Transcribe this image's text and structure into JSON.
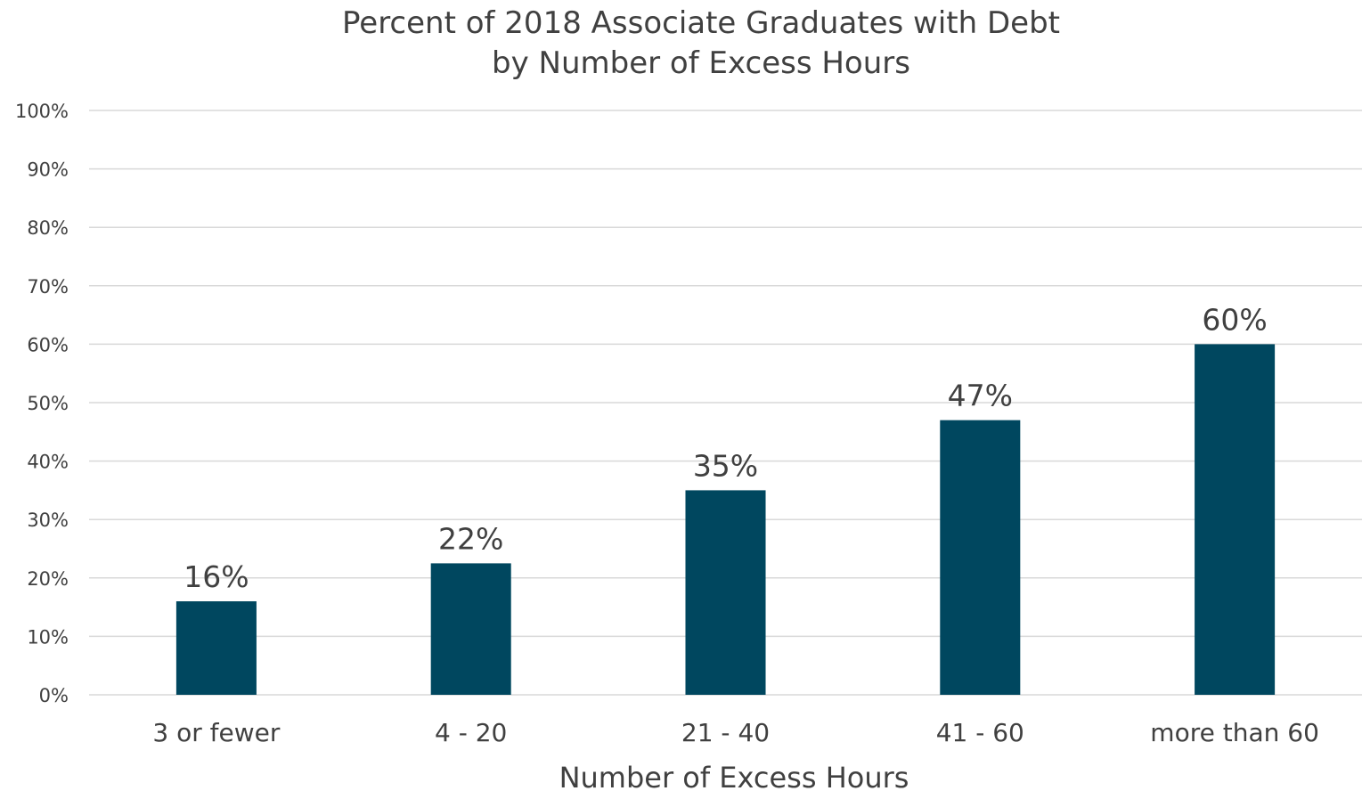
{
  "chart_data": {
    "type": "bar",
    "title": [
      "Percent of 2018 Associate Graduates with Debt",
      "by Number of Excess Hours"
    ],
    "xlabel": "Number of Excess Hours",
    "ylabel": "",
    "categories": [
      "3 or fewer",
      "4 - 20",
      "21 - 40",
      "41 - 60",
      "more than 60"
    ],
    "values": [
      16,
      22.5,
      35,
      47,
      60
    ],
    "data_labels": [
      "16%",
      "22%",
      "35%",
      "47%",
      "60%"
    ],
    "ylim": [
      0,
      100
    ],
    "yticks": [
      0,
      10,
      20,
      30,
      40,
      50,
      60,
      70,
      80,
      90,
      100
    ],
    "ytick_labels": [
      "0%",
      "10%",
      "20%",
      "30%",
      "40%",
      "50%",
      "60%",
      "70%",
      "80%",
      "90%",
      "100%"
    ],
    "grid": true,
    "legend": "none",
    "bar_color": "#00475F"
  }
}
